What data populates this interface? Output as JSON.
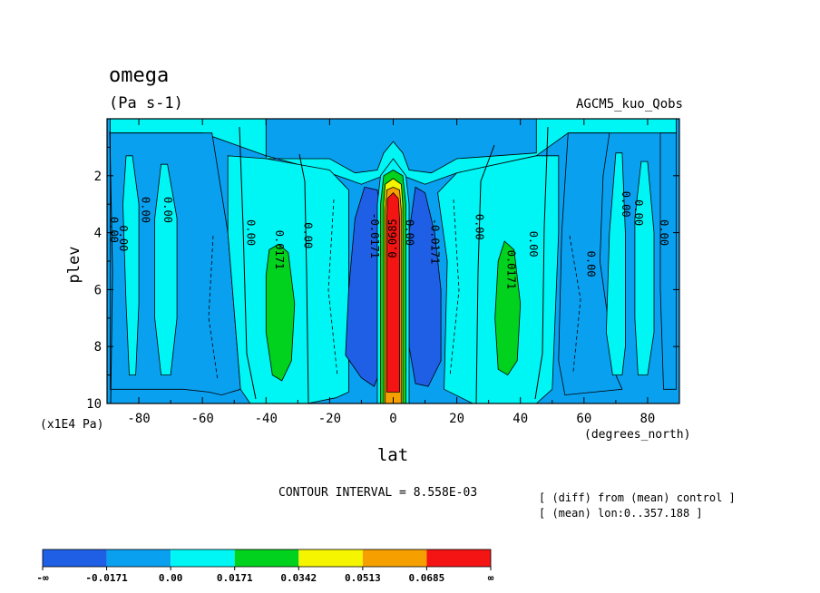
{
  "chart_data": {
    "type": "heatmap",
    "title": "omega",
    "units": "(Pa s-1)",
    "dataset": "AGCM5_kuo_Qobs",
    "xlabel": "lat",
    "xunits": "(degrees_north)",
    "ylabel": "plev",
    "yunits": "(x1E4 Pa)",
    "xlim": [
      -90,
      90
    ],
    "ylim": [
      0,
      10
    ],
    "x_ticks": [
      -80,
      -60,
      -40,
      -20,
      0,
      20,
      40,
      60,
      80
    ],
    "x_tick_labels": [
      "-80",
      "-60",
      "-40",
      "-20",
      "0",
      "20",
      "40",
      "60",
      "80"
    ],
    "y_ticks": [
      2,
      4,
      6,
      8,
      10
    ],
    "y_tick_labels": [
      "2",
      "4",
      "6",
      "8",
      "10"
    ],
    "contour_interval_text": "CONTOUR INTERVAL = 8.558E-03",
    "notes": [
      "[ (diff) from (mean) control ]",
      "[ (mean) lon:0..357.188 ]"
    ],
    "contour_labels": [
      {
        "text": "0.00",
        "x": -88,
        "y": 3.9,
        "rot": 90
      },
      {
        "text": "0.00",
        "x": -85,
        "y": 4.2,
        "rot": 90
      },
      {
        "text": "0.00",
        "x": -78,
        "y": 3.2,
        "rot": 90
      },
      {
        "text": "0.00",
        "x": -71,
        "y": 3.2,
        "rot": 90
      },
      {
        "text": "0.00",
        "x": -45,
        "y": 4.0,
        "rot": 90
      },
      {
        "text": "0.0171",
        "x": -36,
        "y": 4.6,
        "rot": 90
      },
      {
        "text": "0.00",
        "x": -27,
        "y": 4.1,
        "rot": 90
      },
      {
        "text": "-0.0171",
        "x": -6,
        "y": 4.1,
        "rot": 90
      },
      {
        "text": "0.0685",
        "x": 0,
        "y": 4.2,
        "rot": -90
      },
      {
        "text": "0.00",
        "x": 5,
        "y": 4.0,
        "rot": 90
      },
      {
        "text": "-0.0171",
        "x": 13,
        "y": 4.3,
        "rot": 90
      },
      {
        "text": "0.00",
        "x": 27,
        "y": 3.8,
        "rot": 90
      },
      {
        "text": "0.00",
        "x": 44,
        "y": 4.4,
        "rot": 90
      },
      {
        "text": "0.0171",
        "x": 37,
        "y": 5.3,
        "rot": 90
      },
      {
        "text": "0.00",
        "x": 62,
        "y": 5.1,
        "rot": 90
      },
      {
        "text": "0.00",
        "x": 73,
        "y": 3.0,
        "rot": 90
      },
      {
        "text": "0.00",
        "x": 77,
        "y": 3.3,
        "rot": 90
      },
      {
        "text": "0.00",
        "x": 85,
        "y": 4.0,
        "rot": 90
      }
    ],
    "colorbar": {
      "colors": [
        "#1e5fe6",
        "#0aa0f0",
        "#00f5f5",
        "#00d21e",
        "#f5f500",
        "#f5a000",
        "#f51414"
      ],
      "labels": [
        "-∞",
        "-0.0171",
        "0.00",
        "0.0171",
        "0.0342",
        "0.0513",
        "0.0685",
        "∞"
      ]
    },
    "regions": [
      {
        "name": "midlevel-sky-band",
        "color": "#00f5f5",
        "pts": [
          [
            -89,
            0
          ],
          [
            -40,
            0
          ],
          [
            -40,
            1.4
          ],
          [
            -20,
            1.4
          ],
          [
            -12,
            1.9
          ],
          [
            -5,
            1.8
          ],
          [
            -3,
            1.2
          ],
          [
            0,
            0.8
          ],
          [
            3,
            1.2
          ],
          [
            5,
            1.8
          ],
          [
            12,
            1.9
          ],
          [
            20,
            1.4
          ],
          [
            45,
            1.2
          ],
          [
            45,
            0
          ],
          [
            89,
            0
          ],
          [
            89,
            0.5
          ],
          [
            60,
            0.5
          ],
          [
            55,
            0.5
          ],
          [
            45,
            1.3
          ],
          [
            20,
            1.9
          ],
          [
            10,
            2.3
          ],
          [
            3,
            2.0
          ],
          [
            0,
            1.5
          ],
          [
            -3,
            2.0
          ],
          [
            -10,
            2.3
          ],
          [
            -20,
            1.9
          ],
          [
            -40,
            1.3
          ],
          [
            -60,
            0.5
          ],
          [
            -89,
            0.5
          ]
        ]
      },
      {
        "name": "negative-band-left-outer",
        "color": "#0aa0f0",
        "pts": [
          [
            -89,
            0.5
          ],
          [
            -60,
            0.5
          ],
          [
            -57,
            0.5
          ],
          [
            -52,
            4.0
          ],
          [
            -48,
            9.5
          ],
          [
            -54,
            9.7
          ],
          [
            -58,
            9.6
          ],
          [
            -66,
            9.5
          ],
          [
            -89,
            9.5
          ]
        ]
      },
      {
        "name": "sky-left-column-1",
        "color": "#00f5f5",
        "pts": [
          [
            -84,
            1.3
          ],
          [
            -82,
            1.3
          ],
          [
            -80,
            3.0
          ],
          [
            -80,
            6.5
          ],
          [
            -81,
            9.0
          ],
          [
            -83,
            9.0
          ],
          [
            -84,
            6.5
          ],
          [
            -85,
            3.0
          ]
        ]
      },
      {
        "name": "sky-left-column-2",
        "color": "#00f5f5",
        "pts": [
          [
            -73,
            1.6
          ],
          [
            -71,
            1.6
          ],
          [
            -68,
            3.5
          ],
          [
            -68,
            7.0
          ],
          [
            -70,
            9.0
          ],
          [
            -73,
            9.0
          ],
          [
            -75,
            7.0
          ],
          [
            -75,
            3.5
          ]
        ]
      },
      {
        "name": "sky-left-mid",
        "color": "#00f5f5",
        "pts": [
          [
            -52,
            1.3
          ],
          [
            -40,
            1.4
          ],
          [
            -20,
            1.8
          ],
          [
            -14,
            2.5
          ],
          [
            -14,
            9.6
          ],
          [
            -18,
            9.8
          ],
          [
            -27,
            10
          ],
          [
            -45,
            10
          ],
          [
            -48,
            9.5
          ],
          [
            -52,
            4.0
          ]
        ]
      },
      {
        "name": "green-left",
        "color": "#00d21e",
        "pts": [
          [
            -39,
            4.6
          ],
          [
            -36,
            4.4
          ],
          [
            -33,
            4.7
          ],
          [
            -31,
            6.5
          ],
          [
            -32,
            8.5
          ],
          [
            -35,
            9.2
          ],
          [
            -38,
            9.0
          ],
          [
            -40,
            7.5
          ],
          [
            -40,
            5.5
          ]
        ]
      },
      {
        "name": "blue-left-trough",
        "color": "#1e5fe6",
        "pts": [
          [
            -9,
            2.4
          ],
          [
            -5,
            2.5
          ],
          [
            -3,
            4.0
          ],
          [
            -3,
            8.5
          ],
          [
            -6,
            9.4
          ],
          [
            -10,
            9.1
          ],
          [
            -15,
            8.3
          ],
          [
            -14,
            6.0
          ],
          [
            -12,
            3.5
          ]
        ]
      },
      {
        "name": "blue-right-trough",
        "color": "#1e5fe6",
        "pts": [
          [
            7,
            2.4
          ],
          [
            10,
            2.6
          ],
          [
            13,
            4.0
          ],
          [
            15,
            6.0
          ],
          [
            15,
            8.5
          ],
          [
            11,
            9.4
          ],
          [
            7,
            9.3
          ],
          [
            5,
            8.0
          ],
          [
            5,
            4.0
          ]
        ]
      },
      {
        "name": "sky-right-mid",
        "color": "#00f5f5",
        "pts": [
          [
            14,
            2.6
          ],
          [
            20,
            1.9
          ],
          [
            45,
            1.3
          ],
          [
            52,
            1.3
          ],
          [
            52,
            4.0
          ],
          [
            50,
            9.5
          ],
          [
            45,
            10
          ],
          [
            25,
            10
          ],
          [
            16,
            9.5
          ],
          [
            17,
            5.0
          ]
        ]
      },
      {
        "name": "green-right",
        "color": "#00d21e",
        "pts": [
          [
            35,
            4.3
          ],
          [
            38,
            4.6
          ],
          [
            40,
            6.5
          ],
          [
            39,
            8.5
          ],
          [
            36,
            9.0
          ],
          [
            33,
            8.8
          ],
          [
            32,
            7.0
          ],
          [
            33,
            5.0
          ]
        ]
      },
      {
        "name": "negative-band-right-outer",
        "color": "#0aa0f0",
        "pts": [
          [
            55,
            0.5
          ],
          [
            62,
            0.5
          ],
          [
            68,
            0.5
          ],
          [
            66,
            2.0
          ],
          [
            65,
            5.0
          ],
          [
            70,
            9.0
          ],
          [
            72,
            9.5
          ],
          [
            54,
            9.7
          ],
          [
            52,
            8.5
          ],
          [
            53,
            4.0
          ]
        ]
      },
      {
        "name": "sky-right-column-1",
        "color": "#00f5f5",
        "pts": [
          [
            70,
            1.2
          ],
          [
            72,
            1.2
          ],
          [
            73,
            4.0
          ],
          [
            73,
            8.0
          ],
          [
            72,
            9.0
          ],
          [
            69,
            9.0
          ],
          [
            67,
            7.5
          ],
          [
            68,
            4.0
          ]
        ]
      },
      {
        "name": "sky-right-column-2",
        "color": "#00f5f5",
        "pts": [
          [
            78,
            1.5
          ],
          [
            80,
            1.5
          ],
          [
            82,
            4.0
          ],
          [
            82,
            7.5
          ],
          [
            80,
            9.0
          ],
          [
            77,
            9.0
          ],
          [
            76,
            7.0
          ],
          [
            76,
            3.5
          ]
        ]
      },
      {
        "name": "negative-band-right-edge",
        "color": "#0aa0f0",
        "pts": [
          [
            84,
            0.5
          ],
          [
            89,
            0.5
          ],
          [
            89,
            9.5
          ],
          [
            85,
            9.5
          ],
          [
            84,
            6.0
          ],
          [
            84,
            2.0
          ]
        ]
      },
      {
        "name": "sky-equator-core",
        "color": "#00f5f5",
        "pts": [
          [
            -4,
            2.0
          ],
          [
            0,
            1.4
          ],
          [
            4,
            2.0
          ],
          [
            5,
            3.0
          ],
          [
            5,
            10
          ],
          [
            -5,
            10
          ],
          [
            -5,
            3.0
          ]
        ]
      },
      {
        "name": "green-equator",
        "color": "#00d21e",
        "pts": [
          [
            -3,
            2.0
          ],
          [
            0,
            1.8
          ],
          [
            3,
            2.0
          ],
          [
            4,
            3.0
          ],
          [
            4,
            10
          ],
          [
            -4,
            10
          ],
          [
            -4,
            3.0
          ]
        ]
      },
      {
        "name": "yellow-equator",
        "color": "#f5f500",
        "pts": [
          [
            -2.5,
            2.3
          ],
          [
            0,
            2.1
          ],
          [
            2.5,
            2.3
          ],
          [
            3,
            3.0
          ],
          [
            3,
            10
          ],
          [
            -3,
            10
          ],
          [
            -3,
            3.0
          ]
        ]
      },
      {
        "name": "orange-equator",
        "color": "#f5a000",
        "pts": [
          [
            -2,
            2.5
          ],
          [
            0,
            2.4
          ],
          [
            2,
            2.5
          ],
          [
            2.5,
            3.2
          ],
          [
            2.5,
            10
          ],
          [
            -2.5,
            10
          ],
          [
            -2.5,
            3.2
          ]
        ]
      },
      {
        "name": "red-equator",
        "color": "#f51414",
        "pts": [
          [
            -1.8,
            2.8
          ],
          [
            0,
            2.6
          ],
          [
            1.6,
            2.8
          ],
          [
            2,
            3.5
          ],
          [
            2,
            9.6
          ],
          [
            -2,
            9.6
          ],
          [
            -2,
            3.5
          ]
        ]
      }
    ]
  }
}
